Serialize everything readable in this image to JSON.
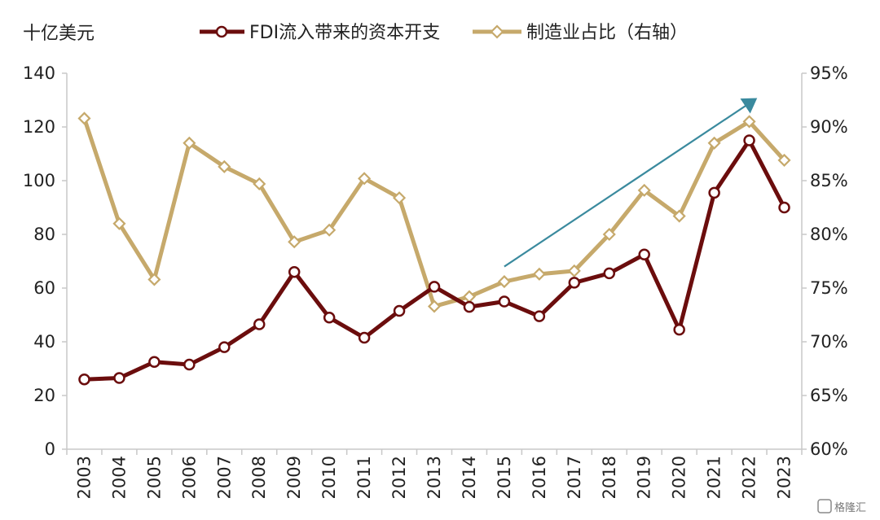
{
  "chart_data": {
    "type": "line",
    "unit_label": "十亿美元",
    "x": [
      "2003",
      "2004",
      "2005",
      "2006",
      "2007",
      "2008",
      "2009",
      "2010",
      "2011",
      "2012",
      "2013",
      "2014",
      "2015",
      "2016",
      "2017",
      "2018",
      "2019",
      "2020",
      "2021",
      "2022",
      "2023"
    ],
    "series": [
      {
        "name": "FDI流入带来的资本开支",
        "axis": "left",
        "color": "#6b0d0d",
        "values": [
          26,
          26.5,
          32.5,
          31.5,
          38,
          46.5,
          66,
          49,
          41.5,
          51.5,
          60.5,
          53,
          55,
          49.5,
          62,
          65.5,
          72.5,
          44.5,
          95.5,
          115,
          90
        ]
      },
      {
        "name": "制造业占比（右轴）",
        "axis": "right",
        "color": "#c6a96b",
        "values": [
          90.8,
          81.0,
          75.8,
          88.5,
          86.3,
          84.7,
          79.3,
          80.4,
          85.2,
          83.4,
          73.3,
          74.2,
          75.6,
          76.3,
          76.6,
          80.0,
          84.1,
          81.7,
          88.5,
          90.5,
          86.9
        ]
      }
    ],
    "y_left": {
      "min": 0,
      "max": 140,
      "ticks": [
        "0",
        "20",
        "40",
        "60",
        "80",
        "100",
        "120",
        "140"
      ]
    },
    "y_right": {
      "min": 60,
      "max": 95,
      "ticks": [
        "60%",
        "65%",
        "70%",
        "75%",
        "80%",
        "85%",
        "90%",
        "95%"
      ]
    },
    "trend_arrow": {
      "color": "#3a8a9e",
      "from": {
        "x": "2015",
        "y_left": 68
      },
      "to": {
        "x": "2022",
        "y_left": 130
      }
    },
    "legend_position": "top",
    "grid": false
  },
  "watermark": "格隆汇"
}
